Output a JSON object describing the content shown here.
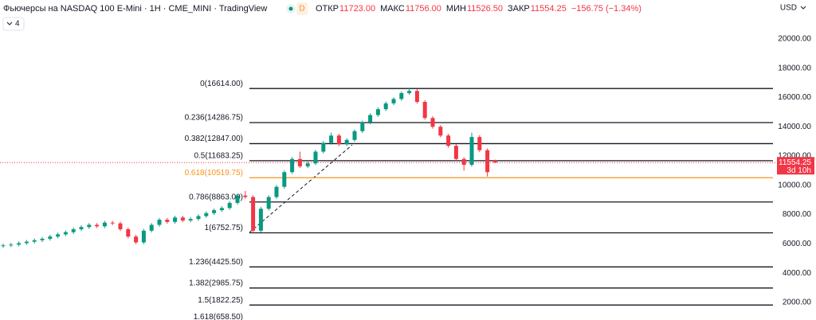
{
  "chart_data": {
    "type": "candlestick",
    "title": "Фьючерсы на NASDAQ 100 E-Mini · 1H · CME_MINI · TradingView",
    "interval_badge": "D",
    "indicator_count": 4,
    "currency": "USD",
    "ohlc_header": {
      "labels": [
        "ОТКР",
        "МАКС",
        "МИН",
        "ЗАКР"
      ],
      "values": [
        11723,
        11756,
        11526.5,
        11554.25
      ],
      "value_labels": [
        "11723.00",
        "11756.00",
        "11526.50",
        "11554.25"
      ]
    },
    "change": {
      "value": -156.75,
      "percent": -1.34,
      "label": "−156.75 (−1.34%)"
    },
    "last_price": {
      "value": 11554.25,
      "label": "11554.25"
    },
    "countdown": "3d 10h",
    "up_color": "#089981",
    "down_color": "#f23645",
    "open": [
      5850,
      5900,
      5950,
      6050,
      6150,
      6250,
      6350,
      6500,
      6650,
      6800,
      7000,
      7150,
      7300,
      7200,
      7450,
      7400,
      7000,
      6500,
      6100,
      6900,
      7300,
      7650,
      7500,
      7800,
      7600,
      7700,
      7900,
      8100,
      8300,
      8450,
      8800,
      9300,
      9200,
      6900,
      8400,
      9200,
      9900,
      10900,
      11800,
      11300,
      11500,
      12300,
      12900,
      13400,
      12800,
      13100,
      13700,
      14300,
      14800,
      15200,
      15600,
      15900,
      16300,
      16450,
      15700,
      14600,
      14000,
      13400,
      12700,
      11800,
      11400,
      13300,
      12400,
      11723
    ],
    "high": [
      6020,
      6070,
      6170,
      6270,
      6370,
      6470,
      6620,
      6770,
      6920,
      7120,
      7270,
      7420,
      7420,
      7570,
      7570,
      7520,
      7120,
      6620,
      7020,
      7420,
      7770,
      7770,
      7920,
      7920,
      7820,
      8020,
      8220,
      8420,
      8570,
      8920,
      9420,
      9620,
      9320,
      8520,
      9320,
      10020,
      11020,
      11920,
      12300,
      11620,
      12420,
      13020,
      13600,
      13520,
      13220,
      13820,
      14420,
      14920,
      15320,
      15720,
      16020,
      16420,
      16614,
      16570,
      15820,
      14720,
      14120,
      13520,
      12820,
      11920,
      13600,
      13420,
      12520,
      11756
    ],
    "low": [
      5730,
      5780,
      5830,
      5930,
      6030,
      6130,
      6230,
      6380,
      6530,
      6680,
      6880,
      7030,
      7080,
      7080,
      7280,
      6880,
      6380,
      5980,
      5980,
      6780,
      7180,
      7380,
      7380,
      7480,
      7480,
      7580,
      7780,
      7980,
      8180,
      8330,
      8680,
      9080,
      6752.75,
      6780,
      8280,
      9080,
      9780,
      10780,
      11180,
      11180,
      11380,
      12180,
      12780,
      12680,
      12680,
      12980,
      13580,
      14180,
      14680,
      15080,
      15480,
      15780,
      16180,
      15580,
      14480,
      13880,
      13280,
      12580,
      11680,
      11000,
      11280,
      12280,
      10600,
      11526.5
    ],
    "close": [
      5900,
      5950,
      6050,
      6150,
      6250,
      6350,
      6500,
      6650,
      6800,
      7000,
      7150,
      7300,
      7200,
      7450,
      7400,
      7000,
      6500,
      6100,
      6900,
      7300,
      7650,
      7500,
      7800,
      7600,
      7700,
      7900,
      8100,
      8300,
      8450,
      8800,
      9300,
      9200,
      6900,
      8400,
      9200,
      9900,
      10900,
      11800,
      11300,
      11500,
      12300,
      12900,
      13400,
      12800,
      13100,
      13700,
      14300,
      14800,
      15200,
      15600,
      15900,
      16300,
      16450,
      15700,
      14600,
      14000,
      13400,
      12700,
      11800,
      11400,
      13300,
      12400,
      10900,
      11554.25
    ],
    "ylim": [
      800,
      22660
    ],
    "yticks": [
      {
        "value": 2000,
        "label": "2000.00"
      },
      {
        "value": 4000,
        "label": "4000.00"
      },
      {
        "value": 6000,
        "label": "6000.00"
      },
      {
        "value": 8000,
        "label": "8000.00"
      },
      {
        "value": 10000,
        "label": "10000.00"
      },
      {
        "value": 12000,
        "label": "12000.00"
      },
      {
        "value": 14000,
        "label": "14000.00"
      },
      {
        "value": 16000,
        "label": "16000.00"
      },
      {
        "value": 18000,
        "label": "18000.00"
      },
      {
        "value": 20000,
        "label": "20000.00"
      }
    ],
    "fib_levels": [
      {
        "label": "0(16614.00)",
        "value": 16614,
        "color": "#131722"
      },
      {
        "label": "0.236(14286.75)",
        "value": 14286.75,
        "color": "#131722"
      },
      {
        "label": "0.382(12847.00)",
        "value": 12847,
        "color": "#131722"
      },
      {
        "label": "0.5(11683.25)",
        "value": 11683.25,
        "color": "#131722"
      },
      {
        "label": "0.618(10519.75)",
        "value": 10519.75,
        "color": "#f7931a"
      },
      {
        "label": "0.786(8863.00)",
        "value": 8863,
        "color": "#131722"
      },
      {
        "label": "1(6752.75)",
        "value": 6752.75,
        "color": "#131722"
      },
      {
        "label": "1.236(4425.50)",
        "value": 4425.5,
        "color": "#131722"
      },
      {
        "label": "1.382(2985.75)",
        "value": 2985.75,
        "color": "#131722"
      },
      {
        "label": "1.5(1822.25)",
        "value": 1822.25,
        "color": "#131722"
      },
      {
        "label": "1.618(658.50)",
        "value": 658.5,
        "color": "#131722"
      }
    ]
  }
}
